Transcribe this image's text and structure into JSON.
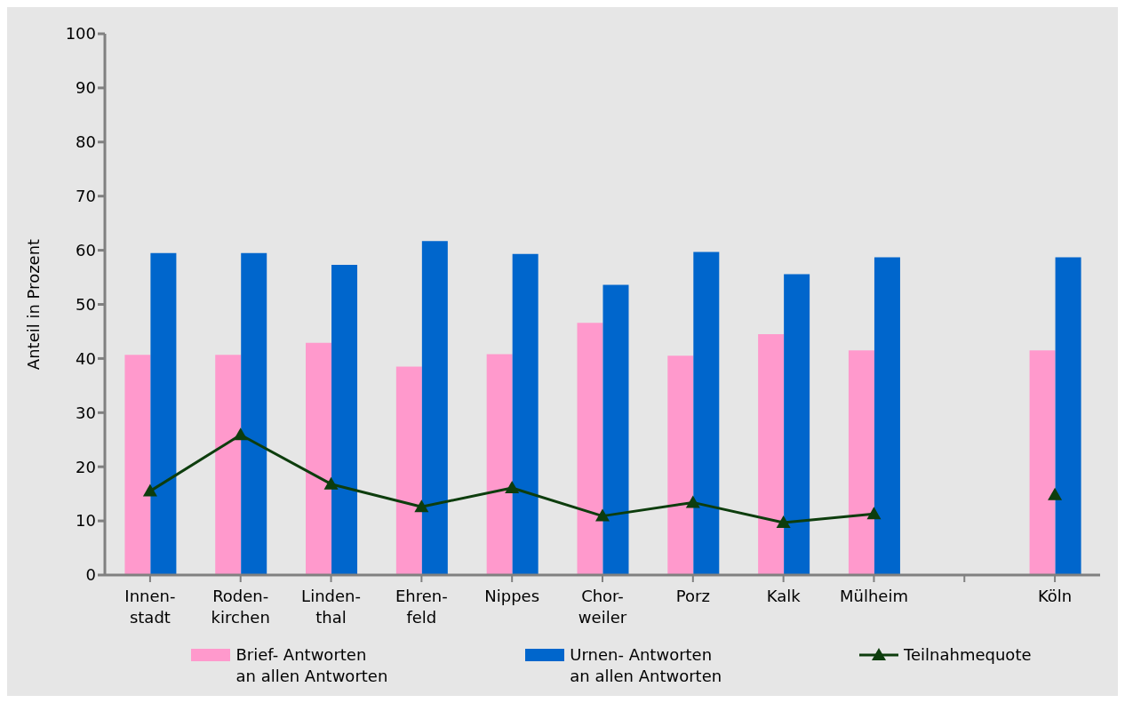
{
  "chart_data": {
    "type": "bar",
    "ylabel": "Anteil in Prozent",
    "categories": [
      "Innen-\nstadt",
      "Roden-\nkirchen",
      "Linden-\nthal",
      "Ehren-\nfeld",
      "Nippes",
      "Chor-\nweiler",
      "Porz",
      "Kalk",
      "Mülheim",
      null,
      "Köln"
    ],
    "series": [
      {
        "name": "Brief- Antworten\nan allen Antworten",
        "color": "#ff99cc",
        "values": [
          40.7,
          40.7,
          42.9,
          38.5,
          40.8,
          46.6,
          40.5,
          44.5,
          41.5,
          null,
          41.5
        ]
      },
      {
        "name": "Urnen- Antworten\nan allen Antworten",
        "color": "#0066cc",
        "values": [
          59.5,
          59.5,
          57.3,
          61.7,
          59.3,
          53.6,
          59.7,
          55.6,
          58.7,
          null,
          58.7
        ]
      },
      {
        "name": "Teilnahmequote",
        "type": "line",
        "color": "#0d3d0d",
        "marker": "triangle",
        "values": [
          15.5,
          25.9,
          16.8,
          12.6,
          16.1,
          10.9,
          13.4,
          9.7,
          11.3,
          null,
          14.8
        ]
      }
    ],
    "ylim": [
      0,
      100
    ],
    "yticks": [
      0,
      10,
      20,
      30,
      40,
      50,
      60,
      70,
      80,
      90,
      100
    ],
    "legend": "bottom"
  }
}
